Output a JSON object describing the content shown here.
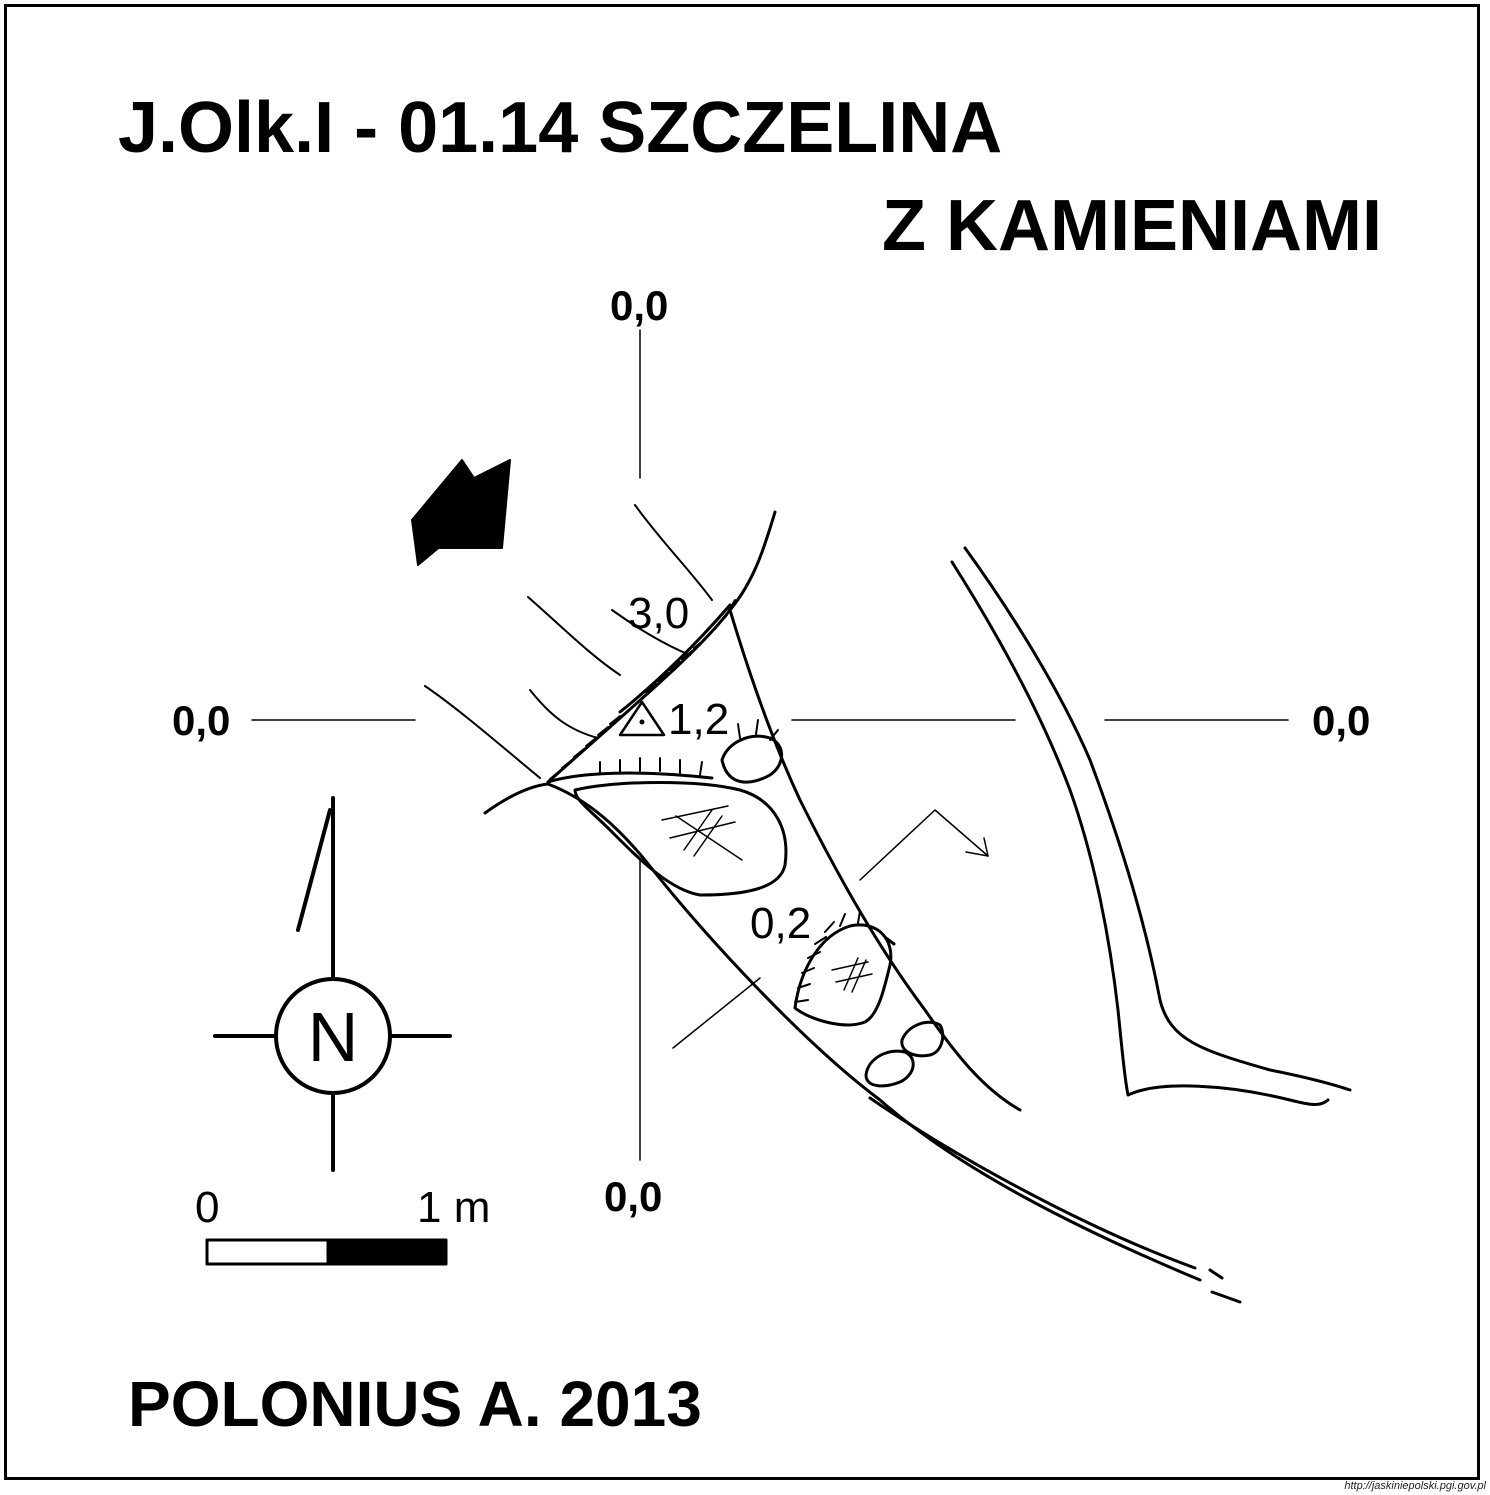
{
  "title": {
    "line1": "J.Olk.I - 01.14  SZCZELINA",
    "line2": "Z KAMIENIAMI"
  },
  "coordinates": {
    "top": "0,0",
    "left": "0,0",
    "right": "0,0",
    "bottom": "0,0"
  },
  "depths": {
    "upper": "3,0",
    "middle": "1,2",
    "lower": "0,2"
  },
  "north_arrow": {
    "letter": "N"
  },
  "scale_bar": {
    "start_label": "0",
    "end_label": "1 m"
  },
  "author": "POLONIUS A.  2013",
  "source_url": "http://jaskiniepolski.pgi.gov.pl",
  "colors": {
    "ink": "#000000",
    "paper": "#ffffff"
  }
}
